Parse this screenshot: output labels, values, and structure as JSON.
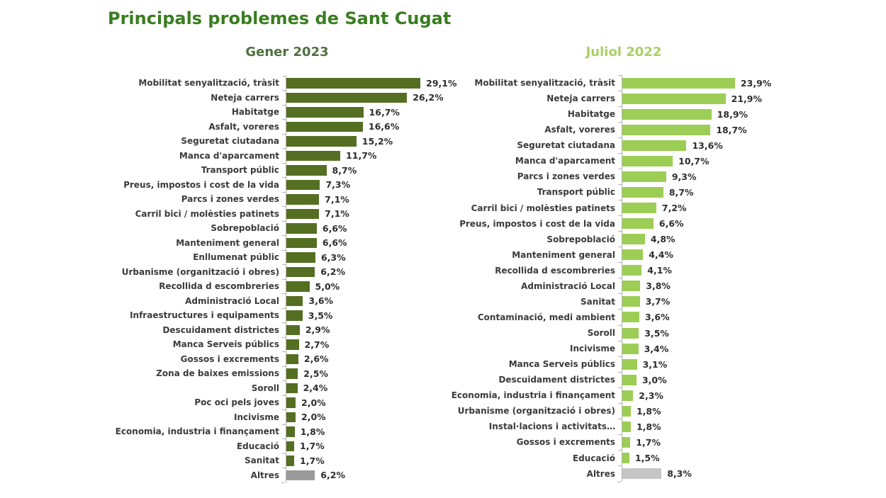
{
  "page_title": "Principals problemes de Sant Cugat",
  "colors": {
    "title_text": "#3a7d21",
    "left_header_text": "#507040",
    "right_header_text": "#a9d163",
    "axis": "#b3b3b3",
    "category_text": "#3b3b3b",
    "value_text": "#2e2e2e",
    "background": "#ffffff"
  },
  "chart_data": [
    {
      "type": "bar",
      "orientation": "horizontal",
      "title": "Gener 2023",
      "xlabel": "",
      "ylabel": "",
      "xlim": [
        0,
        30
      ],
      "grid": false,
      "legend": "none",
      "bar_color": "#546e22",
      "other_bar_color": "#9a9a9a",
      "other_category": "Altres",
      "categories": [
        "Mobilitat senyalització, tràsit",
        "Neteja carrers",
        "Habitatge",
        "Asfalt, voreres",
        "Seguretat ciutadana",
        "Manca d'aparcament",
        "Transport públic",
        "Preus, impostos i cost de la vida",
        "Parcs i zones verdes",
        "Carril bici / molèsties patinets",
        "Sobrepoblació",
        "Manteniment general",
        "Enllumenat públic",
        "Urbanisme (organització i obres)",
        "Recollida d escombreries",
        "Administració Local",
        "Infraestructures i equipaments",
        "Descuidament districtes",
        "Manca Serveis públics",
        "Gossos i excrements",
        "Zona de baixes emissions",
        "Soroll",
        "Poc oci pels joves",
        "Incivisme",
        "Economia, industria i finançament",
        "Educació",
        "Sanitat",
        "Altres"
      ],
      "values": [
        29.1,
        26.2,
        16.7,
        16.6,
        15.2,
        11.7,
        8.7,
        7.3,
        7.1,
        7.1,
        6.6,
        6.6,
        6.3,
        6.2,
        5.0,
        3.6,
        3.5,
        2.9,
        2.7,
        2.6,
        2.5,
        2.4,
        2.0,
        2.0,
        1.8,
        1.7,
        1.7,
        6.2
      ],
      "value_labels": [
        "29,1%",
        "26,2%",
        "16,7%",
        "16,6%",
        "15,2%",
        "11,7%",
        "8,7%",
        "7,3%",
        "7,1%",
        "7,1%",
        "6,6%",
        "6,6%",
        "6,3%",
        "6,2%",
        "5,0%",
        "3,6%",
        "3,5%",
        "2,9%",
        "2,7%",
        "2,6%",
        "2,5%",
        "2,4%",
        "2,0%",
        "2,0%",
        "1,8%",
        "1,7%",
        "1,7%",
        "6,2%"
      ]
    },
    {
      "type": "bar",
      "orientation": "horizontal",
      "title": "Juliol 2022",
      "xlabel": "",
      "ylabel": "",
      "xlim": [
        0,
        24
      ],
      "grid": false,
      "legend": "none",
      "bar_color": "#9ccd55",
      "other_bar_color": "#c5c5c5",
      "other_category": "Altres",
      "categories": [
        "Mobilitat senyalització, tràsit",
        "Neteja carrers",
        "Habitatge",
        "Asfalt, voreres",
        "Seguretat ciutadana",
        "Manca d'aparcament",
        "Parcs i zones verdes",
        "Transport públic",
        "Carril bici / molèsties patinets",
        "Preus, impostos i cost de la vida",
        "Sobrepoblació",
        "Manteniment general",
        "Recollida d escombreries",
        "Administració Local",
        "Sanitat",
        "Contaminació, medi ambient",
        "Soroll",
        "Incivisme",
        "Manca Serveis públics",
        "Descuidament districtes",
        "Economia, industria i finançament",
        "Urbanisme (organització i obres)",
        "Instal·lacions i activitats…",
        "Gossos i excrements",
        "Educació",
        "Altres"
      ],
      "values": [
        23.9,
        21.9,
        18.9,
        18.7,
        13.6,
        10.7,
        9.3,
        8.7,
        7.2,
        6.6,
        4.8,
        4.4,
        4.1,
        3.8,
        3.7,
        3.6,
        3.5,
        3.4,
        3.1,
        3.0,
        2.3,
        1.8,
        1.8,
        1.7,
        1.5,
        8.3
      ],
      "value_labels": [
        "23,9%",
        "21,9%",
        "18,9%",
        "18,7%",
        "13,6%",
        "10,7%",
        "9,3%",
        "8,7%",
        "7,2%",
        "6,6%",
        "4,8%",
        "4,4%",
        "4,1%",
        "3,8%",
        "3,7%",
        "3,6%",
        "3,5%",
        "3,4%",
        "3,1%",
        "3,0%",
        "2,3%",
        "1,8%",
        "1,8%",
        "1,7%",
        "1,5%",
        "8,3%"
      ]
    }
  ]
}
